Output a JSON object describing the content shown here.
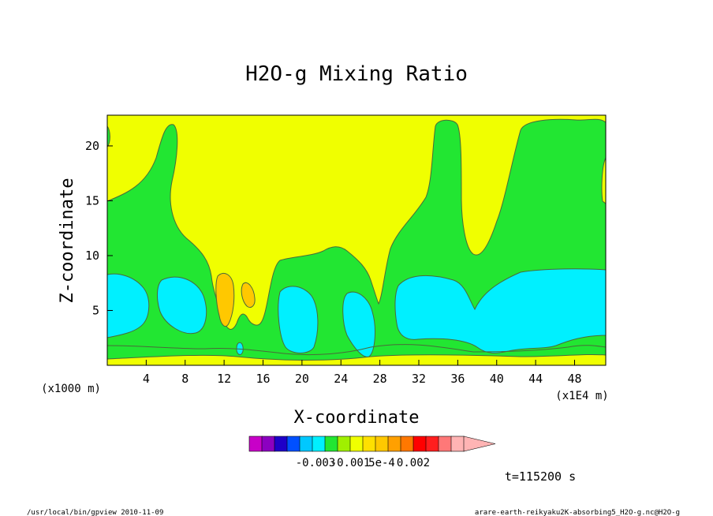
{
  "chart_data": {
    "type": "contour",
    "title": "H2O-g Mixing Ratio",
    "xlabel": "X-coordinate",
    "ylabel": "Z-coordinate",
    "x_unit_label": "(x1000 m)",
    "x_scale_label": "(x1E4 m)",
    "xlim": [
      0,
      51.2
    ],
    "ylim": [
      0,
      22.8
    ],
    "xticks": [
      4,
      8,
      12,
      16,
      20,
      24,
      28,
      32,
      36,
      40,
      44,
      48
    ],
    "yticks": [
      5,
      10,
      15,
      20
    ],
    "colors": {
      "bg_yellow": "#f0ff00",
      "green": "#22e632",
      "cyan": "#00f0ff",
      "orange": "#ffc800",
      "dark_green": "#00a050",
      "outline": "#4a6a3a"
    },
    "colorbar": {
      "colors": [
        "#c800c8",
        "#8c00c0",
        "#1e00c8",
        "#0050ff",
        "#00c8ff",
        "#00f0ff",
        "#22e632",
        "#a0f000",
        "#f0ff00",
        "#ffe000",
        "#ffc800",
        "#ffa000",
        "#ff7800",
        "#ff0000",
        "#ff1e1e",
        "#ff7878",
        "#ffb4b4"
      ],
      "labels": [
        "-0.003",
        "-0.001",
        "5e-4",
        "0.002"
      ]
    },
    "time": "t=115200 s"
  },
  "footer": {
    "left": "/usr/local/bin/gpview  2010-11-09",
    "right": "arare-earth-reikyaku2K-absorbing5_H2O-g.nc@H2O-g"
  }
}
